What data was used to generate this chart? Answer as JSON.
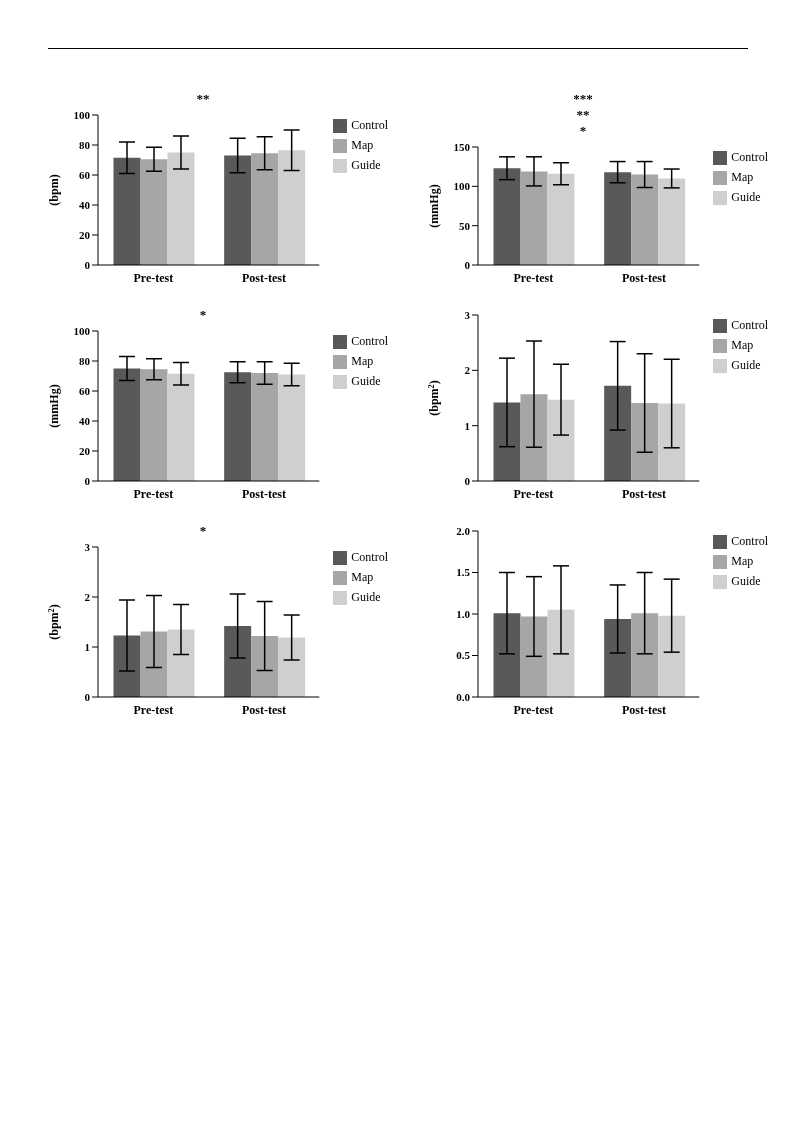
{
  "chart_data": [
    {
      "type": "bar",
      "categories": [
        "Pre-test",
        "Post-test"
      ],
      "ylabel": "(bpm)",
      "ylim": [
        0,
        100
      ],
      "yticks": [
        0,
        20,
        40,
        60,
        80,
        100
      ],
      "legend": "right",
      "annotations": [
        "**"
      ],
      "series": [
        {
          "name": "Control",
          "color": "#595959",
          "values": [
            71.5,
            73
          ],
          "errors": [
            10.5,
            11.5
          ]
        },
        {
          "name": "Map",
          "color": "#a6a6a6",
          "values": [
            70.5,
            74.5
          ],
          "errors": [
            8,
            11
          ]
        },
        {
          "name": "Guide",
          "color": "#cfcfcf",
          "values": [
            75,
            76.5
          ],
          "errors": [
            11,
            13.5
          ]
        }
      ]
    },
    {
      "type": "bar",
      "categories": [
        "Pre-test",
        "Post-test"
      ],
      "ylabel": "(mmHg)",
      "ylim": [
        0,
        150
      ],
      "yticks": [
        0,
        50,
        100,
        150
      ],
      "legend": "right",
      "annotations": [
        "***",
        "**",
        "*"
      ],
      "series": [
        {
          "name": "Control",
          "color": "#595959",
          "values": [
            123,
            118
          ],
          "errors": [
            14.5,
            13.5
          ]
        },
        {
          "name": "Map",
          "color": "#a6a6a6",
          "values": [
            119,
            115
          ],
          "errors": [
            18.5,
            16.5
          ]
        },
        {
          "name": "Guide",
          "color": "#cfcfcf",
          "values": [
            116,
            110
          ],
          "errors": [
            14,
            12
          ]
        }
      ]
    },
    {
      "type": "bar",
      "categories": [
        "Pre-test",
        "Post-test"
      ],
      "ylabel": "(mmHg)",
      "ylim": [
        0,
        100
      ],
      "yticks": [
        0,
        20,
        40,
        60,
        80,
        100
      ],
      "legend": "right",
      "annotations": [
        "*"
      ],
      "series": [
        {
          "name": "Control",
          "color": "#595959",
          "values": [
            75,
            72.5
          ],
          "errors": [
            8,
            7
          ]
        },
        {
          "name": "Map",
          "color": "#a6a6a6",
          "values": [
            74.5,
            72
          ],
          "errors": [
            7,
            7.5
          ]
        },
        {
          "name": "Guide",
          "color": "#cfcfcf",
          "values": [
            71.5,
            71
          ],
          "errors": [
            7.5,
            7.5
          ]
        }
      ]
    },
    {
      "type": "bar",
      "categories": [
        "Pre-test",
        "Post-test"
      ],
      "ylabel": "(bpm$^{2}$)",
      "ylim": [
        0,
        3
      ],
      "yticks": [
        0,
        1,
        2,
        3
      ],
      "legend": "right",
      "series": [
        {
          "name": "Control",
          "color": "#595959",
          "values": [
            1.42,
            1.72
          ],
          "errors": [
            0.8,
            0.8
          ]
        },
        {
          "name": "Map",
          "color": "#a6a6a6",
          "values": [
            1.57,
            1.41
          ],
          "errors": [
            0.96,
            0.89
          ]
        },
        {
          "name": "Guide",
          "color": "#cfcfcf",
          "values": [
            1.47,
            1.4
          ],
          "errors": [
            0.64,
            0.8
          ]
        }
      ]
    },
    {
      "type": "bar",
      "categories": [
        "Pre-test",
        "Post-test"
      ],
      "ylabel": "(bpm$^{2}$)",
      "ylim": [
        0,
        3
      ],
      "yticks": [
        0,
        1,
        2,
        3
      ],
      "legend": "right",
      "annotations": [
        "*"
      ],
      "series": [
        {
          "name": "Control",
          "color": "#595959",
          "values": [
            1.23,
            1.42
          ],
          "errors": [
            0.71,
            0.64
          ]
        },
        {
          "name": "Map",
          "color": "#a6a6a6",
          "values": [
            1.31,
            1.22
          ],
          "errors": [
            0.72,
            0.69
          ]
        },
        {
          "name": "Guide",
          "color": "#cfcfcf",
          "values": [
            1.35,
            1.19
          ],
          "errors": [
            0.5,
            0.45
          ]
        }
      ]
    },
    {
      "type": "bar",
      "categories": [
        "Pre-test",
        "Post-test"
      ],
      "ylim": [
        0,
        2
      ],
      "yticks": [
        {
          "value": 0,
          "label": "0.0"
        },
        0.5,
        {
          "value": 1,
          "label": "1.0"
        },
        1.5,
        {
          "value": 2,
          "label": "2.0"
        }
      ],
      "legend": "right",
      "series": [
        {
          "name": "Control",
          "color": "#595959",
          "values": [
            1.01,
            0.94
          ],
          "errors": [
            0.49,
            0.41
          ]
        },
        {
          "name": "Map",
          "color": "#a6a6a6",
          "values": [
            0.97,
            1.01
          ],
          "errors": [
            0.48,
            0.49
          ]
        },
        {
          "name": "Guide",
          "color": "#cfcfcf",
          "values": [
            1.05,
            0.98
          ],
          "errors": [
            0.53,
            0.44
          ]
        }
      ]
    }
  ]
}
